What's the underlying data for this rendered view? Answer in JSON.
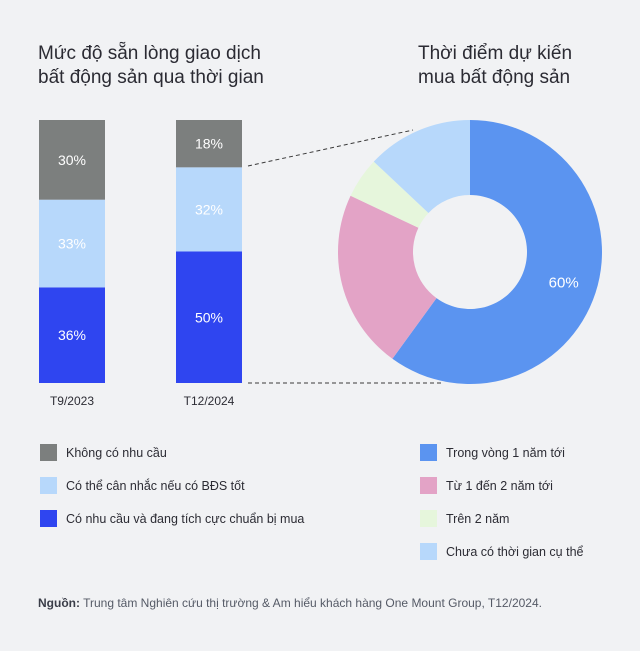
{
  "left_title": [
    "Mức độ sẵn lòng giao dịch",
    "bất động sản qua thời gian"
  ],
  "right_title": [
    "Thời điểm dự kiến",
    "mua bất động sản"
  ],
  "source": {
    "label": "Nguồn:",
    "text": "Trung tâm Nghiên cứu thị trường & Am hiểu khách hàng One Mount Group, T12/2024."
  },
  "legend_left": [
    {
      "label": "Không có nhu cầu",
      "color": "#7c7f7e"
    },
    {
      "label": "Có thể cân nhắc nếu có BĐS tốt",
      "color": "#b7d8fb"
    },
    {
      "label": "Có nhu cầu và đang tích cực chuẩn bị mua",
      "color": "#2f45f0"
    }
  ],
  "legend_right": [
    {
      "label": "Trong vòng 1 năm tới",
      "color": "#5b94f0"
    },
    {
      "label": "Từ 1 đến 2 năm tới",
      "color": "#e3a3c6"
    },
    {
      "label": "Trên 2 năm",
      "color": "#e6f6dc"
    },
    {
      "label": "Chưa có thời gian cụ thể",
      "color": "#b7d8fb"
    }
  ],
  "chart_data": [
    {
      "type": "bar",
      "stacked": true,
      "categories": [
        "T9/2023",
        "T12/2024"
      ],
      "series": [
        {
          "name": "Có nhu cầu và đang tích cực chuẩn bị mua",
          "values": [
            36,
            50
          ],
          "labels": [
            "36%",
            "50%"
          ],
          "color": "#2f45f0"
        },
        {
          "name": "Có thể cân nhắc nếu có BĐS tốt",
          "values": [
            33,
            32
          ],
          "labels": [
            "33%",
            "32%"
          ],
          "color": "#b7d8fb"
        },
        {
          "name": "Không có nhu cầu",
          "values": [
            30,
            18
          ],
          "labels": [
            "30%",
            "18%"
          ],
          "color": "#7c7f7e"
        }
      ],
      "title": "Mức độ sẵn lòng giao dịch bất động sản qua thời gian"
    },
    {
      "type": "pie",
      "donut": true,
      "title": "Thời điểm dự kiến mua bất động sản",
      "slices": [
        {
          "name": "Trong vòng 1 năm tới",
          "value": 60,
          "label": "60%",
          "color": "#5b94f0"
        },
        {
          "name": "Từ 1 đến 2 năm tới",
          "value": 22,
          "label": "",
          "color": "#e3a3c6"
        },
        {
          "name": "Trên 2 năm",
          "value": 5,
          "label": "",
          "color": "#e6f6dc"
        },
        {
          "name": "Chưa có thời gian cụ thể",
          "value": 13,
          "label": "",
          "color": "#b7d8fb"
        }
      ],
      "start": "top, clockwise"
    }
  ]
}
